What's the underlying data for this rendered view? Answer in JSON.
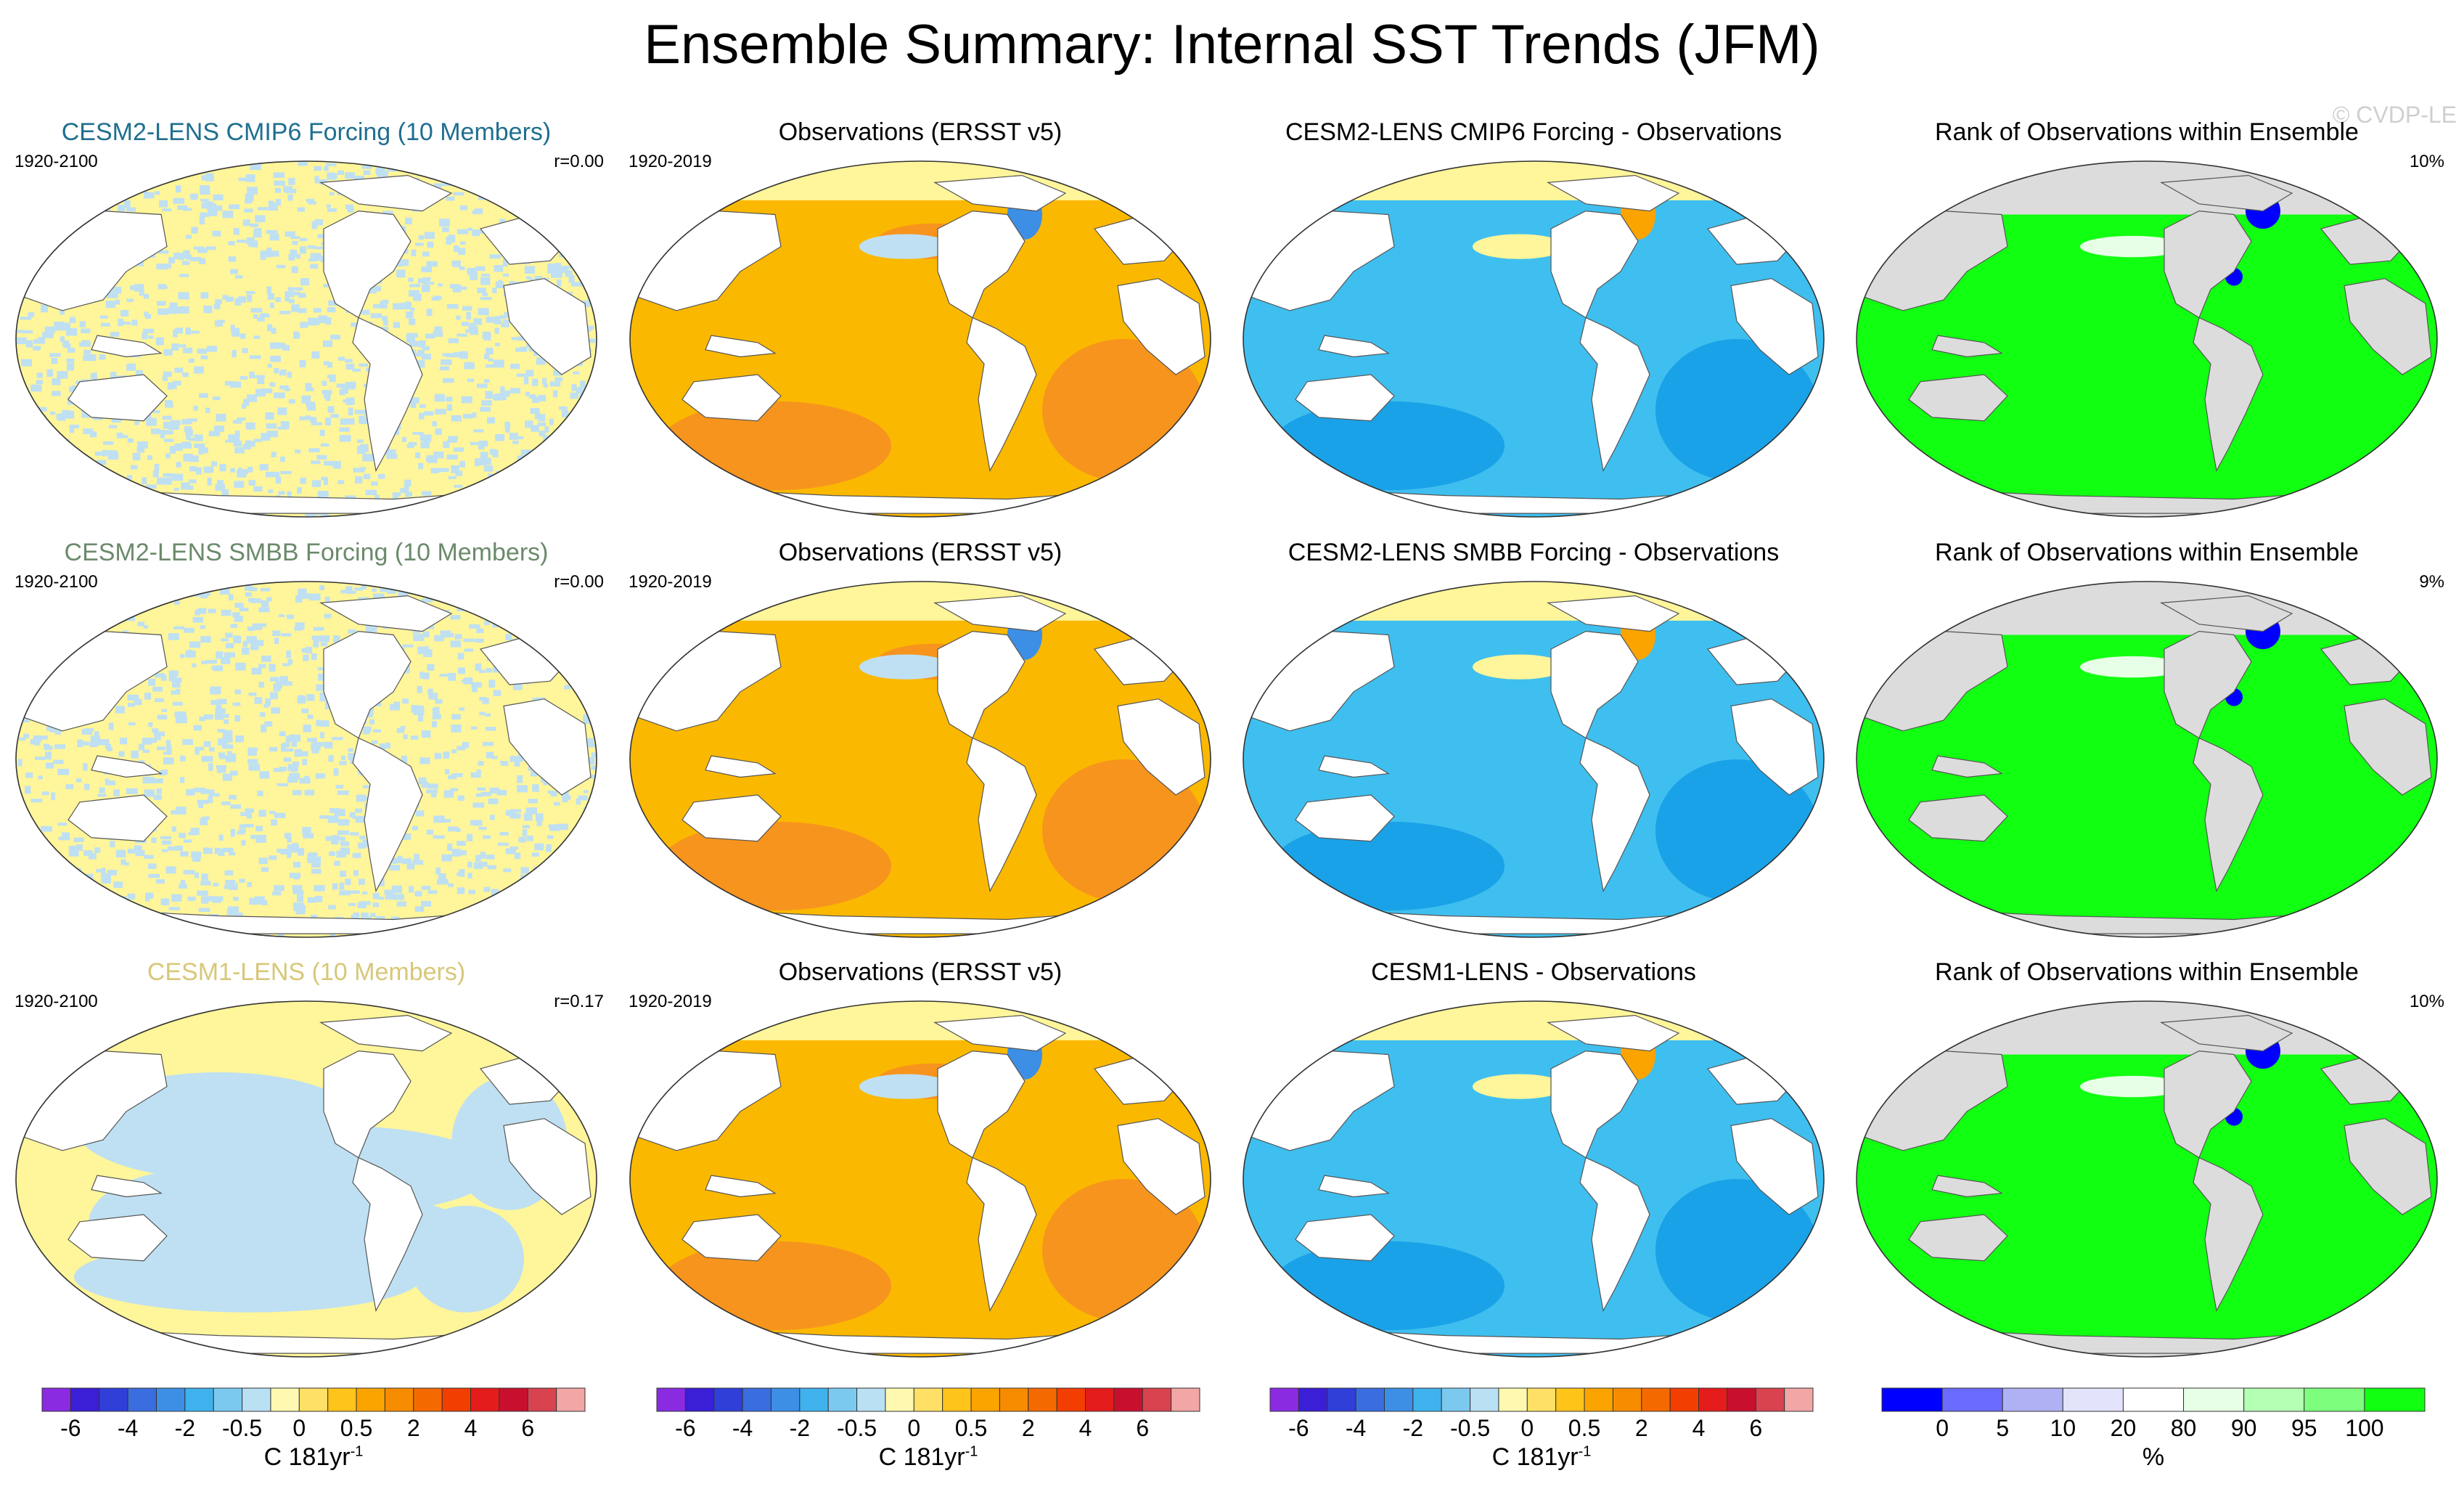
{
  "title": "Ensemble Summary: Internal SST Trends (JFM)",
  "watermark": "© CVDP-LE",
  "colors": {
    "title_cmip6": "#1f6f8f",
    "title_smbb": "#6b8a6b",
    "title_cesm1": "#d8c779",
    "ocean_yellow": "#fff59a",
    "ocean_lightblue": "#bfe0f2",
    "obs_orange": "#fbb800",
    "obs_deep_orange": "#f7941d",
    "diff_blue": "#3fbfef",
    "diff_deep_blue": "#1aa2e8",
    "rank_green": "#11ff11",
    "land_gray": "#dcdcdc"
  },
  "chart_data": [
    {
      "type": "heatmap",
      "row": 1,
      "col": 1,
      "title": "CESM2-LENS CMIP6 Forcing (10 Members)",
      "left_label": "1920-2100",
      "right_label": "r=0.00",
      "style": "noise"
    },
    {
      "type": "heatmap",
      "row": 1,
      "col": 2,
      "title": "Observations (ERSST v5)",
      "left_label": "1920-2019",
      "right_label": "",
      "style": "obs"
    },
    {
      "type": "heatmap",
      "row": 1,
      "col": 3,
      "title": "CESM2-LENS CMIP6 Forcing - Observations",
      "left_label": "",
      "right_label": "",
      "style": "diff"
    },
    {
      "type": "heatmap",
      "row": 1,
      "col": 4,
      "title": "Rank of Observations within Ensemble",
      "left_label": "",
      "right_label": "10%",
      "style": "rank"
    },
    {
      "type": "heatmap",
      "row": 2,
      "col": 1,
      "title": "CESM2-LENS SMBB Forcing (10 Members)",
      "left_label": "1920-2100",
      "right_label": "r=0.00",
      "style": "noise"
    },
    {
      "type": "heatmap",
      "row": 2,
      "col": 2,
      "title": "Observations (ERSST v5)",
      "left_label": "1920-2019",
      "right_label": "",
      "style": "obs"
    },
    {
      "type": "heatmap",
      "row": 2,
      "col": 3,
      "title": "CESM2-LENS SMBB Forcing - Observations",
      "left_label": "",
      "right_label": "",
      "style": "diff"
    },
    {
      "type": "heatmap",
      "row": 2,
      "col": 4,
      "title": "Rank of Observations within Ensemble",
      "left_label": "",
      "right_label": "9%",
      "style": "rank"
    },
    {
      "type": "heatmap",
      "row": 3,
      "col": 1,
      "title": "CESM1-LENS (10 Members)",
      "left_label": "1920-2100",
      "right_label": "r=0.17",
      "style": "smooth"
    },
    {
      "type": "heatmap",
      "row": 3,
      "col": 2,
      "title": "Observations (ERSST v5)",
      "left_label": "1920-2019",
      "right_label": "",
      "style": "obs"
    },
    {
      "type": "heatmap",
      "row": 3,
      "col": 3,
      "title": "CESM1-LENS - Observations",
      "left_label": "",
      "right_label": "",
      "style": "diff"
    },
    {
      "type": "heatmap",
      "row": 3,
      "col": 4,
      "title": "Rank of Observations within Ensemble",
      "left_label": "",
      "right_label": "10%",
      "style": "rank"
    }
  ],
  "colorbars": [
    {
      "unit": "C 181yr",
      "unit_sup": "-1",
      "colors": [
        "#8a2be2",
        "#3a1fd6",
        "#2f3fd8",
        "#3a6ee0",
        "#3d8fe6",
        "#3fb2ee",
        "#7cc9f0",
        "#b9e0f3",
        "#fff8b0",
        "#ffe066",
        "#ffc41a",
        "#fba400",
        "#f88c00",
        "#f56a00",
        "#f23e00",
        "#e41c1c",
        "#c8102e",
        "#d9434f",
        "#f2a6a6"
      ],
      "ticks": [
        "-6",
        "-4",
        "-2",
        "-0.5",
        "0",
        "0.5",
        "2",
        "4",
        "6"
      ],
      "tick_boundaries": [
        1,
        3,
        5,
        7,
        9,
        11,
        13,
        15,
        17
      ]
    },
    {
      "unit": "C 181yr",
      "unit_sup": "-1",
      "colors": [
        "#8a2be2",
        "#3a1fd6",
        "#2f3fd8",
        "#3a6ee0",
        "#3d8fe6",
        "#3fb2ee",
        "#7cc9f0",
        "#b9e0f3",
        "#fff8b0",
        "#ffe066",
        "#ffc41a",
        "#fba400",
        "#f88c00",
        "#f56a00",
        "#f23e00",
        "#e41c1c",
        "#c8102e",
        "#d9434f",
        "#f2a6a6"
      ],
      "ticks": [
        "-6",
        "-4",
        "-2",
        "-0.5",
        "0",
        "0.5",
        "2",
        "4",
        "6"
      ],
      "tick_boundaries": [
        1,
        3,
        5,
        7,
        9,
        11,
        13,
        15,
        17
      ]
    },
    {
      "unit": "C 181yr",
      "unit_sup": "-1",
      "colors": [
        "#8a2be2",
        "#3a1fd6",
        "#2f3fd8",
        "#3a6ee0",
        "#3d8fe6",
        "#3fb2ee",
        "#7cc9f0",
        "#b9e0f3",
        "#fff8b0",
        "#ffe066",
        "#ffc41a",
        "#fba400",
        "#f88c00",
        "#f56a00",
        "#f23e00",
        "#e41c1c",
        "#c8102e",
        "#d9434f",
        "#f2a6a6"
      ],
      "ticks": [
        "-6",
        "-4",
        "-2",
        "-0.5",
        "0",
        "0.5",
        "2",
        "4",
        "6"
      ],
      "tick_boundaries": [
        1,
        3,
        5,
        7,
        9,
        11,
        13,
        15,
        17
      ]
    },
    {
      "unit": "%",
      "unit_sup": "",
      "colors": [
        "#0000ff",
        "#6b6bff",
        "#b0b0f5",
        "#e3e3fb",
        "#ffffff",
        "#e6ffe6",
        "#b3ffb3",
        "#7dff7d",
        "#11ff11"
      ],
      "ticks": [
        "0",
        "5",
        "10",
        "20",
        "80",
        "90",
        "95",
        "100"
      ],
      "tick_boundaries": [
        1,
        2,
        3,
        4,
        5,
        6,
        7,
        8
      ]
    }
  ]
}
